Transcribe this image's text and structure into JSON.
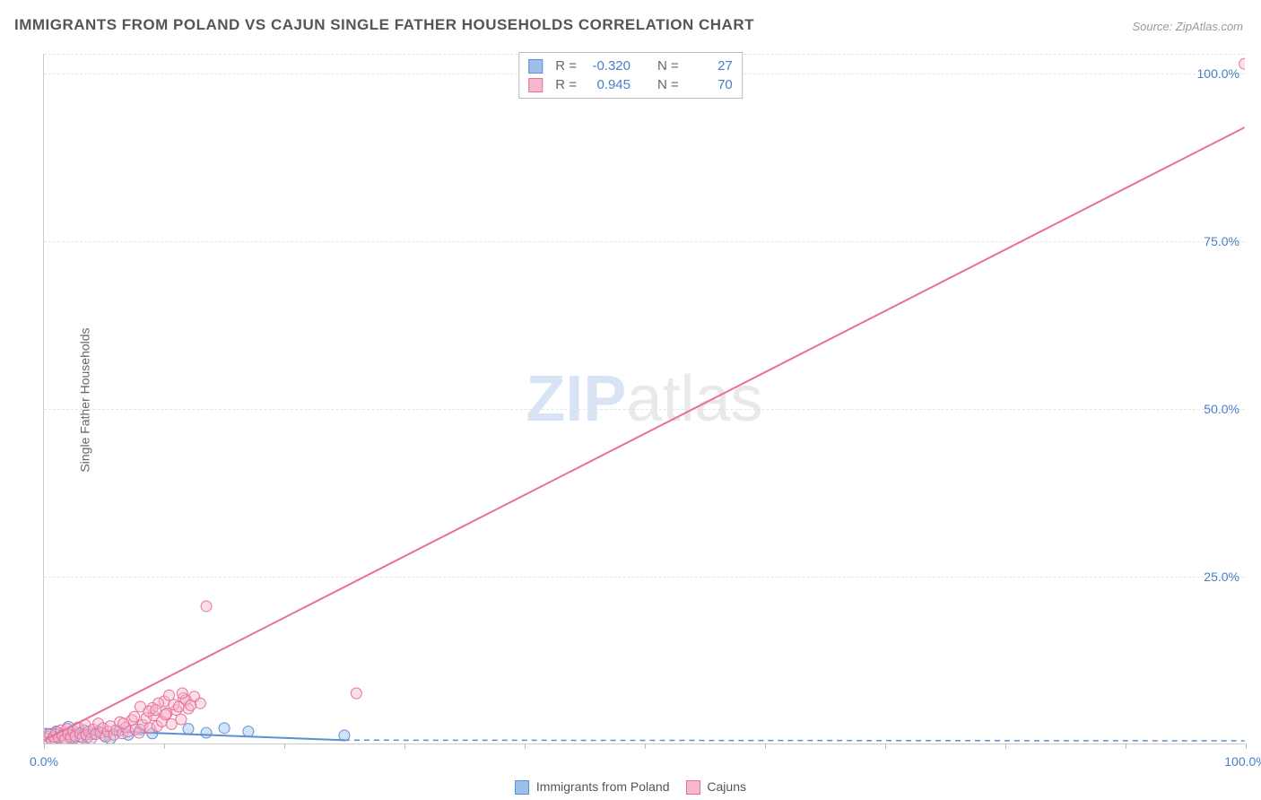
{
  "title": "IMMIGRANTS FROM POLAND VS CAJUN SINGLE FATHER HOUSEHOLDS CORRELATION CHART",
  "source": "Source: ZipAtlas.com",
  "ylabel": "Single Father Households",
  "watermark_a": "ZIP",
  "watermark_b": "atlas",
  "chart": {
    "type": "scatter",
    "xlim": [
      0,
      100
    ],
    "ylim": [
      0,
      103
    ],
    "yticks": [
      25,
      50,
      75,
      100
    ],
    "ytick_labels": [
      "25.0%",
      "50.0%",
      "75.0%",
      "100.0%"
    ],
    "xticks": [
      0,
      10,
      20,
      30,
      40,
      50,
      60,
      70,
      80,
      90,
      100
    ],
    "xtick_labels": {
      "0": "0.0%",
      "100": "100.0%"
    },
    "marker_radius": 6,
    "marker_opacity": 0.45,
    "grid_color": "#e5e5e5",
    "axis_color": "#cccccc",
    "tick_label_color": "#4a7ec9",
    "series": [
      {
        "name": "Immigrants from Poland",
        "color_fill": "#9cc0ea",
        "color_stroke": "#5a8fd4",
        "R": "-0.320",
        "N": "27",
        "trend": {
          "x1": 0,
          "y1": 2.2,
          "x2": 25,
          "y2": 0.5,
          "dash_from_x": 25,
          "dash_to_x": 100,
          "dash_y": 0.4
        },
        "points": [
          [
            0.3,
            1.0
          ],
          [
            0.5,
            1.3
          ],
          [
            0.8,
            0.7
          ],
          [
            1.0,
            1.8
          ],
          [
            1.2,
            0.9
          ],
          [
            1.5,
            1.2
          ],
          [
            1.8,
            0.6
          ],
          [
            2.0,
            2.5
          ],
          [
            2.2,
            1.1
          ],
          [
            2.5,
            0.8
          ],
          [
            2.8,
            1.6
          ],
          [
            3.0,
            1.0
          ],
          [
            3.3,
            2.0
          ],
          [
            3.6,
            0.9
          ],
          [
            4.0,
            1.4
          ],
          [
            4.5,
            1.8
          ],
          [
            5.0,
            1.2
          ],
          [
            5.5,
            0.7
          ],
          [
            6.2,
            1.9
          ],
          [
            7.0,
            1.3
          ],
          [
            8.0,
            2.1
          ],
          [
            9.0,
            1.5
          ],
          [
            12.0,
            2.2
          ],
          [
            13.5,
            1.6
          ],
          [
            15.0,
            2.3
          ],
          [
            17.0,
            1.8
          ],
          [
            25.0,
            1.2
          ]
        ]
      },
      {
        "name": "Cajuns",
        "color_fill": "#f5b8cc",
        "color_stroke": "#e86f9b",
        "R": "0.945",
        "N": "70",
        "trend": {
          "x1": 0,
          "y1": 0.5,
          "x2": 100,
          "y2": 92
        },
        "points": [
          [
            0.2,
            0.7
          ],
          [
            0.4,
            1.4
          ],
          [
            0.6,
            0.5
          ],
          [
            0.8,
            1.0
          ],
          [
            1.0,
            1.7
          ],
          [
            1.2,
            0.9
          ],
          [
            1.4,
            2.0
          ],
          [
            1.5,
            1.2
          ],
          [
            1.7,
            0.6
          ],
          [
            1.9,
            2.2
          ],
          [
            2.0,
            1.4
          ],
          [
            2.2,
            0.8
          ],
          [
            2.4,
            1.9
          ],
          [
            2.6,
            1.1
          ],
          [
            2.8,
            2.4
          ],
          [
            3.0,
            1.5
          ],
          [
            3.2,
            0.9
          ],
          [
            3.4,
            2.8
          ],
          [
            3.5,
            1.3
          ],
          [
            3.7,
            1.8
          ],
          [
            3.9,
            0.7
          ],
          [
            4.1,
            2.1
          ],
          [
            4.3,
            1.4
          ],
          [
            4.5,
            3.0
          ],
          [
            4.7,
            1.6
          ],
          [
            4.9,
            2.3
          ],
          [
            5.1,
            1.0
          ],
          [
            5.3,
            1.8
          ],
          [
            5.5,
            2.6
          ],
          [
            5.8,
            1.3
          ],
          [
            6.0,
            2.0
          ],
          [
            6.3,
            3.2
          ],
          [
            6.5,
            1.5
          ],
          [
            6.8,
            2.4
          ],
          [
            7.0,
            1.8
          ],
          [
            7.3,
            3.5
          ],
          [
            7.6,
            2.1
          ],
          [
            7.9,
            1.6
          ],
          [
            8.2,
            2.8
          ],
          [
            8.5,
            3.8
          ],
          [
            8.8,
            2.3
          ],
          [
            9.1,
            4.2
          ],
          [
            9.4,
            2.6
          ],
          [
            9.8,
            3.3
          ],
          [
            10.2,
            4.5
          ],
          [
            10.6,
            2.9
          ],
          [
            11.0,
            5.0
          ],
          [
            11.4,
            3.6
          ],
          [
            10.0,
            6.3
          ],
          [
            10.8,
            5.8
          ],
          [
            11.6,
            6.8
          ],
          [
            12.0,
            5.2
          ],
          [
            12.5,
            7.0
          ],
          [
            9.5,
            6.0
          ],
          [
            11.2,
            5.5
          ],
          [
            10.4,
            7.2
          ],
          [
            11.8,
            6.5
          ],
          [
            13.0,
            6.0
          ],
          [
            9.0,
            5.3
          ],
          [
            8.7,
            4.8
          ],
          [
            7.5,
            4.0
          ],
          [
            8.0,
            5.5
          ],
          [
            9.3,
            5.0
          ],
          [
            10.1,
            4.3
          ],
          [
            11.5,
            7.5
          ],
          [
            12.2,
            5.7
          ],
          [
            13.5,
            20.5
          ],
          [
            26.0,
            7.5
          ],
          [
            100.0,
            101.5
          ],
          [
            6.6,
            3.0
          ]
        ]
      }
    ]
  },
  "stat_box": {
    "rows": [
      {
        "swatch_fill": "#9cc0ea",
        "swatch_stroke": "#5a8fd4",
        "R_label": "R =",
        "R": "-0.320",
        "N_label": "N =",
        "N": "27"
      },
      {
        "swatch_fill": "#f5b8cc",
        "swatch_stroke": "#e86f9b",
        "R_label": "R =",
        "R": "0.945",
        "N_label": "N =",
        "N": "70"
      }
    ]
  },
  "bottom_legend": [
    {
      "swatch_fill": "#9cc0ea",
      "swatch_stroke": "#5a8fd4",
      "label": "Immigrants from Poland"
    },
    {
      "swatch_fill": "#f5b8cc",
      "swatch_stroke": "#e86f9b",
      "label": "Cajuns"
    }
  ]
}
